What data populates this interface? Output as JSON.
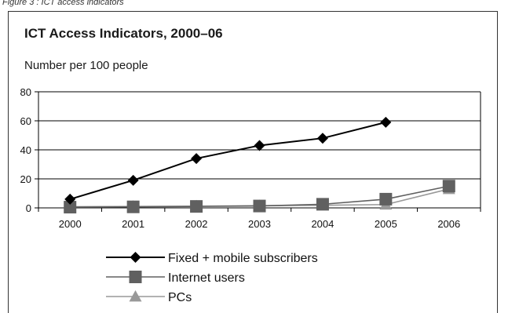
{
  "caption": "Figure 3 : ICT access indicators",
  "chart_data": {
    "type": "line",
    "title": "ICT Access Indicators, 2000–06",
    "subtitle": "Number per 100 people",
    "xlabel": "",
    "ylabel": "",
    "categories": [
      "2000",
      "2001",
      "2002",
      "2003",
      "2004",
      "2005",
      "2006"
    ],
    "ylim": [
      0,
      80
    ],
    "yticks": [
      0,
      20,
      40,
      60,
      80
    ],
    "grid": "horizontal",
    "legend": "bottom",
    "series": [
      {
        "name": "Fixed + mobile subscribers",
        "values": [
          6,
          19,
          34,
          43,
          48,
          59,
          null
        ],
        "color": "#000000",
        "marker": "diamond"
      },
      {
        "name": "Internet users",
        "values": [
          0.5,
          0.7,
          1,
          1.3,
          2.5,
          6,
          15
        ],
        "color": "#606060",
        "marker": "square"
      },
      {
        "name": "PCs",
        "values": [
          0.8,
          1,
          1.2,
          1.5,
          1.8,
          2.3,
          13
        ],
        "color": "#999999",
        "marker": "triangle"
      }
    ]
  }
}
